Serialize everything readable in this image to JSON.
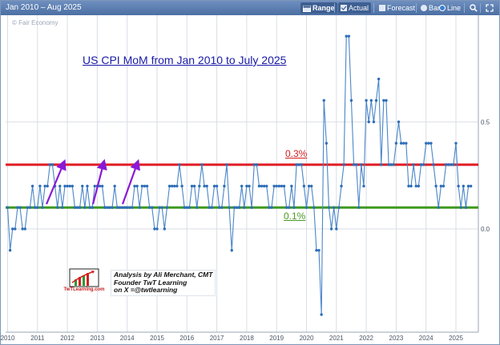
{
  "toolbar": {
    "range_text": "Jan 2010 – Aug 2025",
    "range_label": "Range",
    "actual_label": "Actual",
    "forecast_label": "Forecast",
    "bar_label": "Bar",
    "line_label": "Line",
    "search_icon": "magnifier-icon",
    "expand_icon": "expand-arrows-icon"
  },
  "watermark": "© Fair Economy",
  "annotation": {
    "author_line1": "Analysis by Ali Merchant, CMT",
    "author_line2": "Founder TwT Learning",
    "author_line3": "on X =@twtlearning",
    "logo_text": "TwTLearning.com"
  },
  "colors": {
    "line": "#4a86c8",
    "reference_high": "#e01f25",
    "reference_low": "#3f9a1f",
    "arrows": "#8a18d6",
    "title": "#1a1aa8"
  },
  "chart_data": {
    "type": "line",
    "title": "US CPI MoM from Jan 2010 to July 2025",
    "x_tick_labels": [
      "2010",
      "2011",
      "2012",
      "2013",
      "2014",
      "2015",
      "2016",
      "2017",
      "2018",
      "2019",
      "2020",
      "2021",
      "2022",
      "2023",
      "2024",
      "2025"
    ],
    "y_tick_labels": [
      "0.5",
      "0.0"
    ],
    "ylim": [
      -0.5,
      0.9
    ],
    "grid": true,
    "reference_lines": [
      {
        "value": 0.3,
        "label": "0.3%",
        "color": "#e01f25"
      },
      {
        "value": 0.1,
        "label": "0.1%",
        "color": "#3f9a1f"
      }
    ],
    "series": [
      {
        "start": "2010-01",
        "end": "2025-07",
        "frequency": "monthly",
        "values": [
          0.1,
          -0.1,
          0.0,
          0.0,
          0.1,
          0.1,
          0.0,
          0.0,
          0.1,
          0.1,
          0.2,
          0.1,
          0.1,
          0.2,
          0.1,
          0.2,
          0.2,
          0.3,
          0.3,
          0.2,
          0.1,
          0.2,
          0.1,
          0.2,
          0.2,
          0.2,
          0.2,
          0.1,
          0.1,
          0.1,
          0.2,
          0.1,
          0.2,
          0.1,
          0.1,
          0.2,
          0.2,
          0.2,
          0.2,
          0.1,
          0.1,
          0.1,
          0.1,
          0.2,
          0.1,
          0.1,
          0.1,
          0.1,
          0.1,
          0.1,
          0.1,
          0.2,
          0.2,
          0.1,
          0.2,
          0.2,
          0.2,
          0.1,
          0.1,
          0.0,
          0.0,
          0.1,
          0.1,
          0.0,
          0.1,
          0.2,
          0.2,
          0.2,
          0.2,
          0.3,
          0.2,
          0.1,
          0.1,
          0.1,
          0.2,
          0.2,
          0.1,
          0.2,
          0.3,
          0.2,
          0.2,
          0.1,
          0.1,
          0.2,
          0.2,
          0.1,
          0.1,
          0.2,
          0.3,
          0.1,
          -0.1,
          0.1,
          0.1,
          0.1,
          0.2,
          0.1,
          0.2,
          0.2,
          0.1,
          0.3,
          0.3,
          0.2,
          0.2,
          0.2,
          0.2,
          0.1,
          0.1,
          0.2,
          0.2,
          0.2,
          0.2,
          0.2,
          0.1,
          0.1,
          0.2,
          0.1,
          0.3,
          0.3,
          0.3,
          0.2,
          0.1,
          0.2,
          0.2,
          0.1,
          -0.1,
          -0.1,
          -0.4,
          0.6,
          0.4,
          0.1,
          0.0,
          0.1,
          0.0,
          0.1,
          0.2,
          0.3,
          0.9,
          0.9,
          0.6,
          0.3,
          0.3,
          0.1,
          0.3,
          0.2,
          0.6,
          0.5,
          0.6,
          0.5,
          0.6,
          0.7,
          0.3,
          0.6,
          0.6,
          0.3,
          0.3,
          0.3,
          0.4,
          0.5,
          0.4,
          0.4,
          0.4,
          0.2,
          0.2,
          0.3,
          0.2,
          0.2,
          0.3,
          0.3,
          0.4,
          0.4,
          0.4,
          0.3,
          0.2,
          0.1,
          0.2,
          0.2,
          0.3,
          0.3,
          0.3,
          0.3,
          0.4,
          0.2,
          0.1,
          0.2,
          0.1,
          0.2,
          0.2
        ]
      }
    ]
  }
}
